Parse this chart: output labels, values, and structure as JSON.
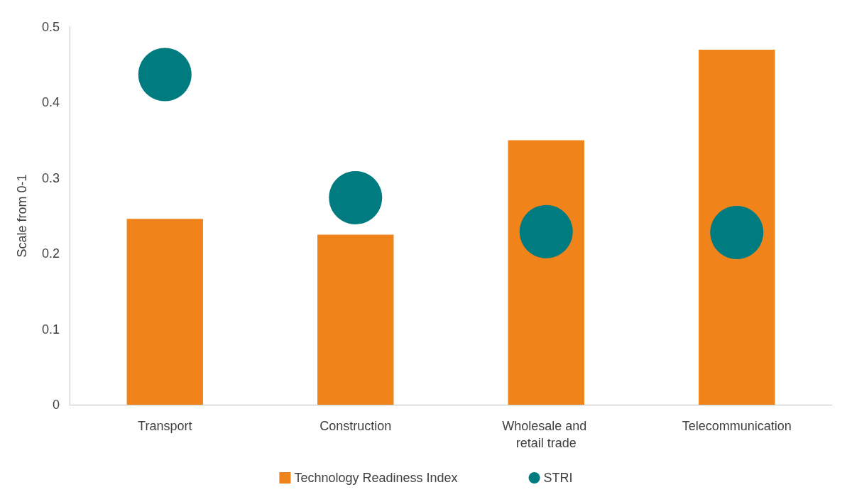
{
  "chart_data": {
    "type": "bar",
    "ylabel": "Scale from 0-1",
    "categories": [
      "Transport",
      "Construction",
      "Wholesale and retail trade",
      "Telecommunication"
    ],
    "series": [
      {
        "name": "Technology Readiness Index",
        "color": "#f0841b",
        "values": [
          0.246,
          0.225,
          0.35,
          0.47
        ]
      },
      {
        "name": "STRI",
        "type": "scatter",
        "marker": "circle",
        "color": "#007b7f",
        "x": [
          "Transport",
          "Construction",
          "Wholesale and retail trade",
          "Telecommunication"
        ],
        "values": [
          0.437,
          0.274,
          0.229,
          0.228
        ]
      }
    ],
    "ylim": [
      0,
      0.5
    ],
    "yticks": [
      0,
      0.1,
      0.2,
      0.3,
      0.4,
      0.5
    ],
    "grid": false,
    "legend": "bottom"
  }
}
